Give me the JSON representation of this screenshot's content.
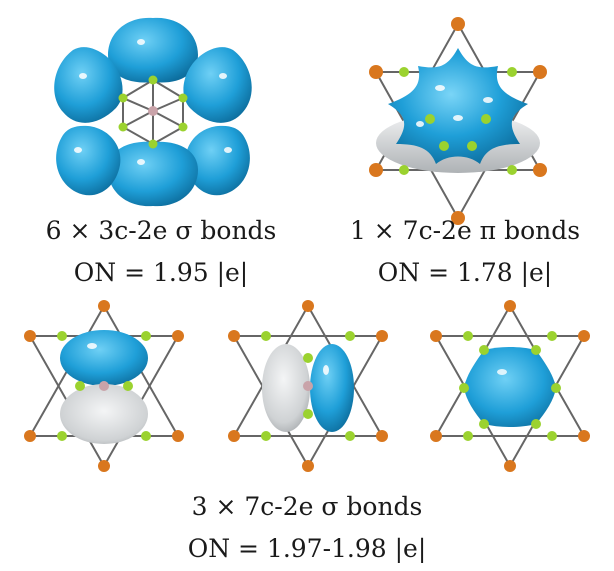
{
  "figure": {
    "colors": {
      "lobe_positive": "#1f9fd8",
      "lobe_negative": "#d5d8da",
      "atom_outer": "#d9771e",
      "atom_inner": "#9bd22f",
      "atom_center": "#c9a3a9",
      "bond": "#666666"
    },
    "panels": [
      {
        "id": "sigma-3c2e",
        "orbital": "six-lobe-sigma"
      },
      {
        "id": "pi-7c2e",
        "orbital": "star-pi"
      },
      {
        "id": "sigma-7c2e-a",
        "orbital": "vertical-p"
      },
      {
        "id": "sigma-7c2e-b",
        "orbital": "horizontal-p"
      },
      {
        "id": "sigma-7c2e-c",
        "orbital": "hexagonal"
      }
    ],
    "captions": {
      "top_left_line1": "6 × 3c-2e σ bonds",
      "top_left_line2": "ON = 1.95 |e|",
      "top_right_line1": "1 × 7c-2e π bonds",
      "top_right_line2": "ON = 1.78 |e|",
      "bottom_line1": "3 × 7c-2e σ bonds",
      "bottom_line2": "ON = 1.97-1.98 |e|"
    }
  }
}
